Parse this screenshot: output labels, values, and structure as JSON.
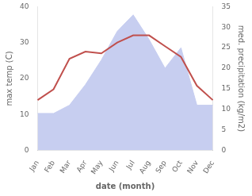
{
  "chart_data": {
    "type": "line",
    "xlabel": "date (month)",
    "ylabel": "max temp (C)",
    "y2label": "med. precipitation (kg/m2)",
    "categories": [
      "Jan",
      "Feb",
      "Mar",
      "Apr",
      "May",
      "Jun",
      "Jul",
      "Aug",
      "Sep",
      "Oct",
      "Nov",
      "Dec"
    ],
    "series": [
      {
        "type": "area",
        "axis": "y2",
        "color": "#c7cef0",
        "values": [
          9.0,
          9.0,
          11.0,
          16.0,
          22.0,
          29.0,
          33.0,
          27.0,
          20.0,
          25.0,
          11.0,
          11.0
        ]
      },
      {
        "type": "line",
        "color": "#c0504d",
        "values": [
          14.0,
          17.0,
          25.5,
          27.5,
          27.0,
          30.0,
          32.0,
          32.0,
          29.0,
          26.0,
          18.0,
          14.0
        ]
      }
    ],
    "ylim": [
      0,
      40
    ],
    "yticks": [
      0,
      10,
      20,
      30,
      40
    ],
    "y2lim": [
      0,
      35
    ],
    "y2ticks": [
      0,
      5,
      10,
      15,
      20,
      25,
      30,
      35
    ],
    "grid": false
  }
}
